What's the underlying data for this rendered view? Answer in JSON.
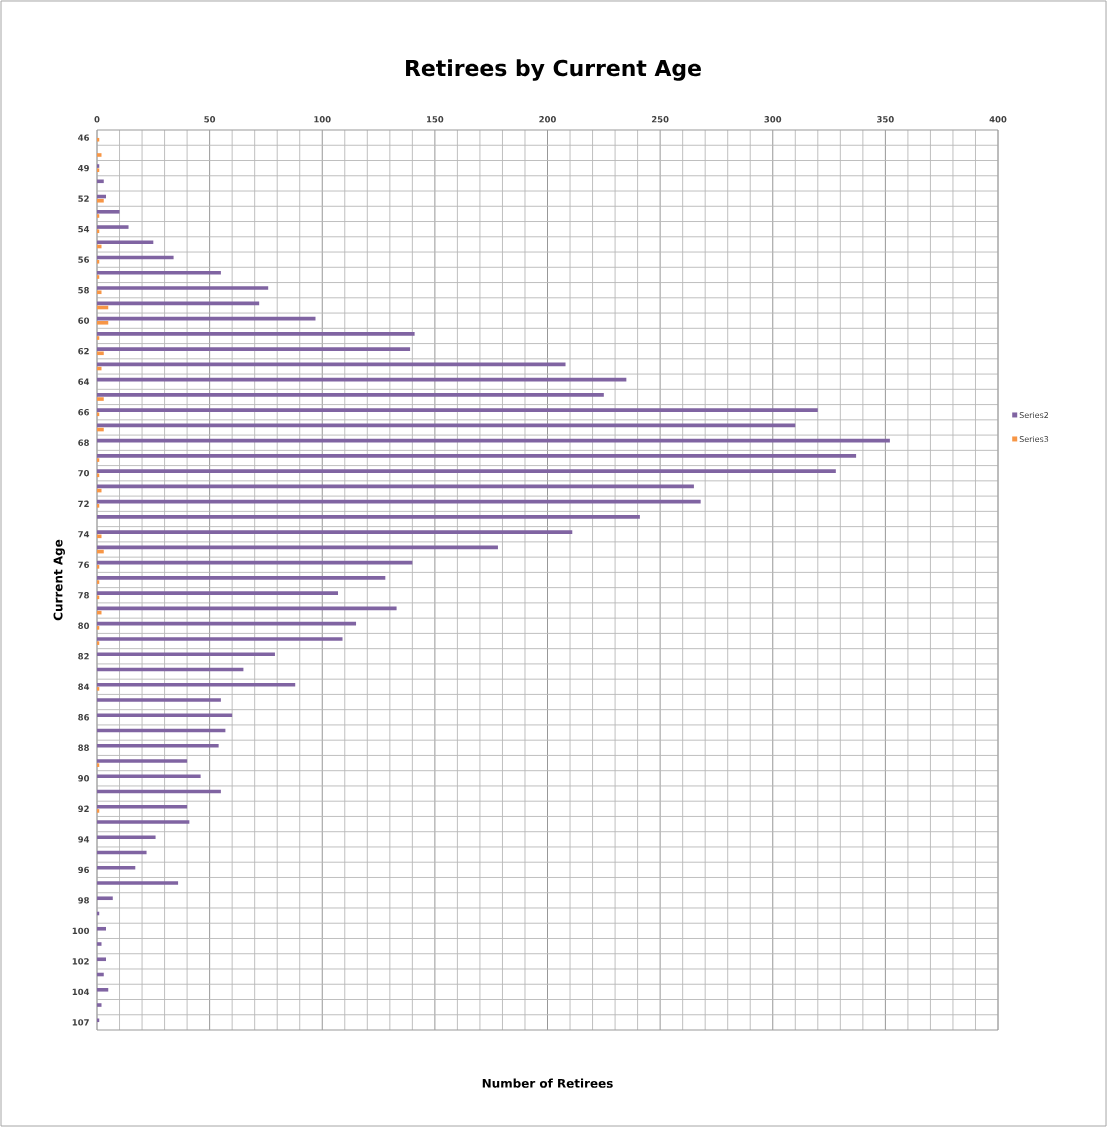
{
  "chart_data": {
    "type": "bar",
    "orientation": "horizontal",
    "title": "Retirees by Current Age",
    "xlabel": "Number of Retirees",
    "ylabel": "Current Age",
    "categories": [
      "46",
      null,
      "49",
      null,
      "52",
      null,
      "54",
      null,
      "56",
      null,
      "58",
      null,
      "60",
      null,
      "62",
      null,
      "64",
      null,
      "66",
      null,
      "68",
      null,
      "70",
      null,
      "72",
      null,
      "74",
      null,
      "76",
      null,
      "78",
      null,
      "80",
      null,
      "82",
      null,
      "84",
      null,
      "86",
      null,
      "88",
      null,
      "90",
      null,
      "92",
      null,
      "94",
      null,
      "96",
      null,
      "98",
      null,
      "100",
      null,
      "102",
      null,
      "104",
      null,
      "107"
    ],
    "series": [
      {
        "name": "Series2",
        "color": "#8064a2",
        "values": [
          0,
          0,
          1,
          3,
          4,
          10,
          14,
          25,
          34,
          55,
          76,
          72,
          97,
          141,
          139,
          208,
          235,
          225,
          320,
          310,
          352,
          337,
          328,
          265,
          268,
          241,
          211,
          178,
          140,
          128,
          107,
          133,
          115,
          109,
          79,
          65,
          88,
          55,
          60,
          57,
          54,
          40,
          46,
          55,
          40,
          41,
          26,
          22,
          17,
          36,
          7,
          1,
          4,
          2,
          4,
          3,
          5,
          2,
          1
        ]
      },
      {
        "name": "Series3",
        "color": "#f79646",
        "values": [
          1,
          2,
          1,
          0,
          3,
          1,
          1,
          2,
          1,
          1,
          2,
          5,
          5,
          1,
          3,
          2,
          0,
          3,
          1,
          3,
          0,
          1,
          1,
          2,
          1,
          0,
          2,
          3,
          1,
          1,
          1,
          2,
          1,
          1,
          0,
          0,
          1,
          0,
          0,
          0,
          0,
          1,
          0,
          0,
          1,
          0,
          0,
          0,
          0,
          0,
          0,
          0,
          0,
          0,
          0,
          0,
          0,
          0,
          0
        ]
      }
    ],
    "xlim": [
      0,
      400
    ],
    "xticks": [
      0,
      50,
      100,
      150,
      200,
      250,
      300,
      350,
      400
    ],
    "grid": true,
    "legend": "right"
  }
}
